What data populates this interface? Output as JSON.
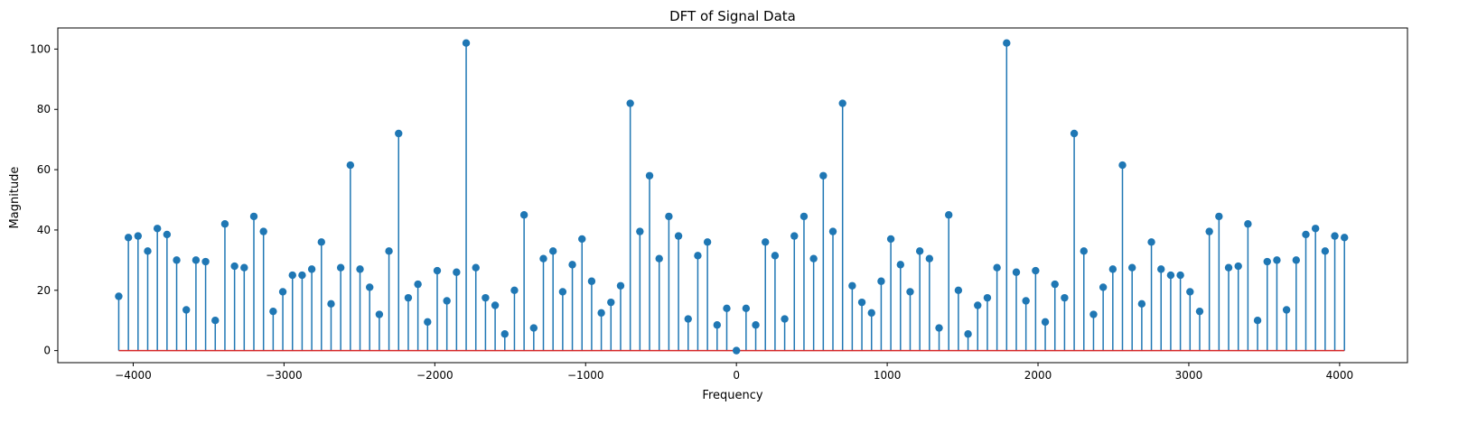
{
  "chart_data": {
    "type": "stem",
    "title": "DFT of Signal Data",
    "xlabel": "Frequency",
    "ylabel": "Magnitude",
    "xlim": [
      -4500,
      4450
    ],
    "ylim": [
      -4,
      107
    ],
    "xticks": [
      -4000,
      -3000,
      -2000,
      -1000,
      0,
      1000,
      2000,
      3000,
      4000
    ],
    "xtick_labels": [
      "−4000",
      "−3000",
      "−2000",
      "−1000",
      "0",
      "1000",
      "2000",
      "3000",
      "4000"
    ],
    "yticks": [
      0,
      20,
      40,
      60,
      80,
      100
    ],
    "ytick_labels": [
      "0",
      "20",
      "40",
      "60",
      "80",
      "100"
    ],
    "grid": false,
    "colors": {
      "stem": "#1f77b4",
      "baseline": "#d62728"
    },
    "x": [
      -4096,
      -4032,
      -3968,
      -3904,
      -3840,
      -3776,
      -3712,
      -3648,
      -3584,
      -3520,
      -3456,
      -3392,
      -3328,
      -3264,
      -3200,
      -3136,
      -3072,
      -3008,
      -2944,
      -2880,
      -2816,
      -2752,
      -2688,
      -2624,
      -2560,
      -2496,
      -2432,
      -2368,
      -2304,
      -2240,
      -2176,
      -2112,
      -2048,
      -1984,
      -1920,
      -1856,
      -1792,
      -1728,
      -1664,
      -1600,
      -1536,
      -1472,
      -1408,
      -1344,
      -1280,
      -1216,
      -1152,
      -1088,
      -1024,
      -960,
      -896,
      -832,
      -768,
      -704,
      -640,
      -576,
      -512,
      -448,
      -384,
      -320,
      -256,
      -192,
      -128,
      -64,
      0,
      64,
      128,
      192,
      256,
      320,
      384,
      448,
      512,
      576,
      640,
      704,
      768,
      832,
      896,
      960,
      1024,
      1088,
      1152,
      1216,
      1280,
      1344,
      1408,
      1472,
      1536,
      1600,
      1664,
      1728,
      1792,
      1856,
      1920,
      1984,
      2048,
      2112,
      2176,
      2240,
      2304,
      2368,
      2432,
      2496,
      2560,
      2624,
      2688,
      2752,
      2816,
      2880,
      2944,
      3008,
      3072,
      3136,
      3200,
      3264,
      3328,
      3392,
      3456,
      3520,
      3584,
      3648,
      3712,
      3776,
      3840,
      3904,
      3968,
      4032
    ],
    "values": [
      18,
      37.5,
      38,
      33,
      40.5,
      38.5,
      30,
      13.5,
      30,
      29.5,
      10,
      42,
      28,
      27.5,
      44.5,
      39.5,
      13,
      19.5,
      25,
      25,
      27,
      36,
      15.5,
      27.5,
      61.5,
      27,
      21,
      12,
      33,
      72,
      17.5,
      22,
      9.5,
      26.5,
      16.5,
      26,
      102,
      27.5,
      17.5,
      15,
      5.5,
      20,
      45,
      7.5,
      30.5,
      33,
      19.5,
      28.5,
      37,
      23,
      12.5,
      16,
      21.5,
      82,
      39.5,
      58,
      30.5,
      44.5,
      38,
      10.5,
      31.5,
      36,
      8.5,
      14,
      0,
      14,
      8.5,
      36,
      31.5,
      10.5,
      38,
      44.5,
      30.5,
      58,
      39.5,
      82,
      21.5,
      16,
      12.5,
      23,
      37,
      28.5,
      19.5,
      33,
      30.5,
      7.5,
      45,
      20,
      5.5,
      15,
      17.5,
      27.5,
      102,
      26,
      16.5,
      26.5,
      9.5,
      22,
      17.5,
      72,
      33,
      12,
      21,
      27,
      61.5,
      27.5,
      15.5,
      36,
      27,
      25,
      25,
      19.5,
      13,
      39.5,
      44.5,
      27.5,
      28,
      42,
      10,
      29.5,
      30,
      13.5,
      30,
      38.5,
      40.5,
      33,
      38,
      37.5
    ]
  }
}
